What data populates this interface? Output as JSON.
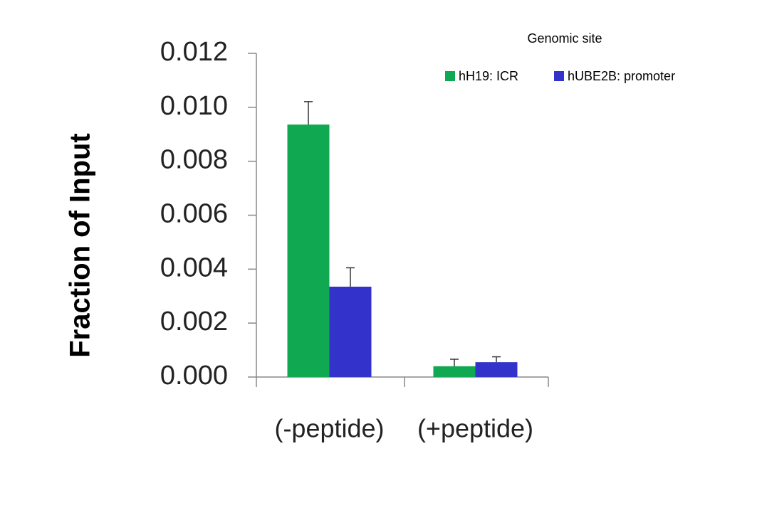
{
  "chart_data": {
    "type": "bar",
    "y_label": "Fraction of  Input",
    "legend_title": "Genomic site",
    "categories": [
      "(-peptide)",
      "(+peptide)"
    ],
    "series": [
      {
        "name": "hH19: ICR",
        "color": "#10a850",
        "values": [
          0.00936,
          0.0004
        ],
        "errors": [
          0.00085,
          0.00026
        ]
      },
      {
        "name": "hUBE2B: promoter",
        "color": "#3333cc",
        "values": [
          0.00335,
          0.00055
        ],
        "errors": [
          0.0007,
          0.0002
        ]
      }
    ],
    "ylim": [
      0,
      0.012
    ],
    "yticks": [
      {
        "value": 0,
        "label": "0.000"
      },
      0.002,
      0.004,
      0.006,
      0.008,
      {
        "value": 0.01,
        "label": "0.010"
      },
      0.012
    ],
    "grid": false
  }
}
